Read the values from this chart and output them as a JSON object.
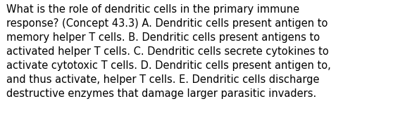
{
  "lines": [
    "What is the role of dendritic cells in the primary immune",
    "response? (Concept 43.3) A. Dendritic cells present antigen to",
    "memory helper T cells. B. Dendritic cells present antigens to",
    "activated helper T cells. C. Dendritic cells secrete cytokines to",
    "activate cytotoxic T cells. D. Dendritic cells present antigen to,",
    "and thus activate, helper T cells. E. Dendritic cells discharge",
    "destructive enzymes that damage larger parasitic invaders."
  ],
  "background_color": "#ffffff",
  "text_color": "#000000",
  "font_size": 10.5,
  "fig_width": 5.58,
  "fig_height": 1.88,
  "dpi": 100
}
